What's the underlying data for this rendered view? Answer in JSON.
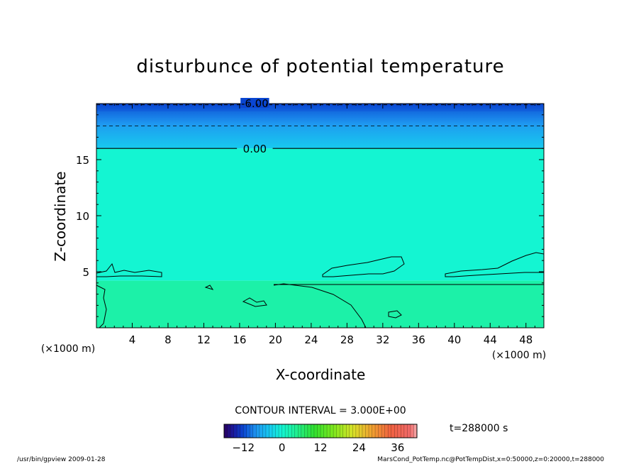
{
  "chart_data": {
    "type": "heatmap",
    "title": "disturbunce of potential temperature",
    "xlabel": "X-coordinate",
    "ylabel": "Z-coordinate",
    "x_unit": "(×1000 m)",
    "z_unit": "(×1000 m)",
    "xlim": [
      0,
      50
    ],
    "ylim": [
      0,
      20
    ],
    "x_ticks": [
      4,
      8,
      12,
      16,
      20,
      24,
      28,
      32,
      36,
      40,
      44,
      48
    ],
    "y_ticks": [
      5,
      10,
      15
    ],
    "contour_labels": [
      "-6.00",
      "0.00"
    ],
    "contour_interval": "CONTOUR INTERVAL = 3.000E+00",
    "colorbar_ticks": [
      -12,
      0,
      12,
      24,
      36
    ],
    "colorbar_range": [
      -18,
      42
    ],
    "time_label": "t=288000 s",
    "fields": [
      {
        "z_range": [
          19.3,
          20
        ],
        "value": -12
      },
      {
        "z_range": [
          18,
          19.3
        ],
        "value": -7
      },
      {
        "z_range": [
          16,
          18
        ],
        "value": -3
      },
      {
        "z_range": [
          4.2,
          16
        ],
        "value": 0
      },
      {
        "z_range": [
          0,
          4.2
        ],
        "value": 3
      }
    ]
  },
  "footer": {
    "left": "/usr/bin/gpview   2009-01-28",
    "right": "MarsCond_PotTemp.nc@PotTempDist,x=0:50000,z=0:20000,t=288000"
  },
  "colors": {
    "cold_deep": "#0a46d2",
    "cold": "#1e96f0",
    "cool": "#18c8f0",
    "neutral": "#14f5d2",
    "warm": "#1ef09a"
  }
}
